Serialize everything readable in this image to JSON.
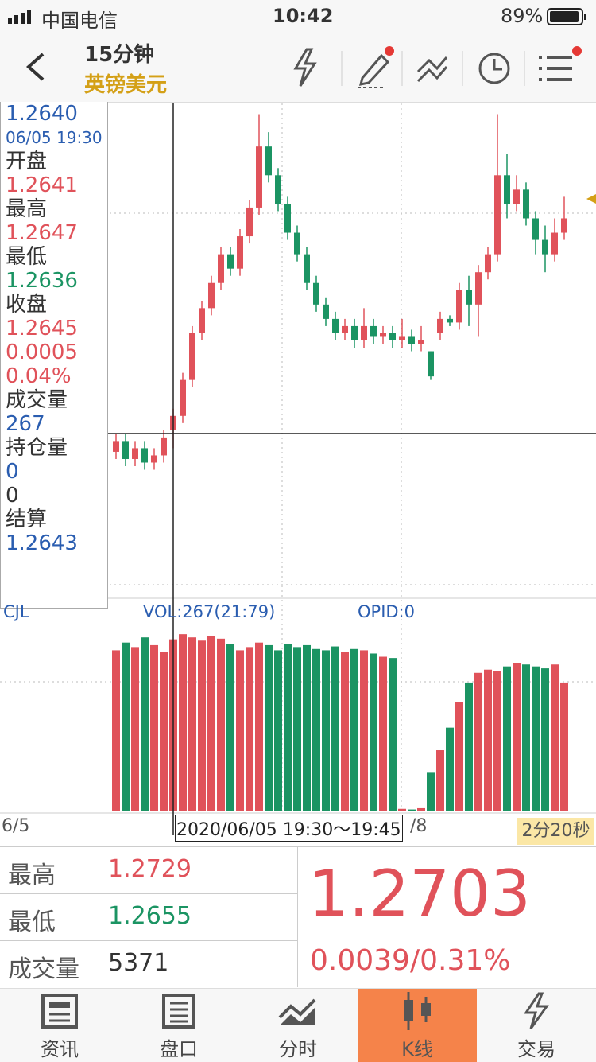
{
  "status_bar": {
    "carrier": "中国电信",
    "time": "10:42",
    "battery": "89%"
  },
  "header": {
    "period": "15分钟",
    "symbol": "英镑美元"
  },
  "chart_data": [
    {
      "type": "candlestick",
      "up_color": "#e0525a",
      "down_color": "#1b9463",
      "ylim": [
        1.2598,
        1.2732
      ],
      "x_labels": [
        "6/5",
        "/8"
      ],
      "crosshair_label": "2020/06/05 19:30～19:45",
      "timer": "2分20秒",
      "candles": [
        [
          1.2635,
          1.264,
          1.2633,
          1.2638
        ],
        [
          1.2638,
          1.264,
          1.2631,
          1.2633
        ],
        [
          1.2633,
          1.2638,
          1.2631,
          1.2636
        ],
        [
          1.2636,
          1.2638,
          1.263,
          1.2632
        ],
        [
          1.2632,
          1.2636,
          1.263,
          1.2634
        ],
        [
          1.2634,
          1.2641,
          1.2632,
          1.2639
        ],
        [
          1.2641,
          1.2647,
          1.2636,
          1.2645
        ],
        [
          1.2645,
          1.2657,
          1.2643,
          1.2655
        ],
        [
          1.2655,
          1.267,
          1.2653,
          1.2668
        ],
        [
          1.2668,
          1.2677,
          1.2666,
          1.2675
        ],
        [
          1.2675,
          1.2684,
          1.2673,
          1.2682
        ],
        [
          1.2682,
          1.2692,
          1.268,
          1.269
        ],
        [
          1.269,
          1.2692,
          1.2684,
          1.2686
        ],
        [
          1.2686,
          1.2697,
          1.2684,
          1.2695
        ],
        [
          1.2695,
          1.2705,
          1.2693,
          1.2703
        ],
        [
          1.2703,
          1.2729,
          1.2701,
          1.272
        ],
        [
          1.272,
          1.2724,
          1.271,
          1.2712
        ],
        [
          1.2712,
          1.2714,
          1.2702,
          1.2704
        ],
        [
          1.2704,
          1.2706,
          1.2694,
          1.2696
        ],
        [
          1.2696,
          1.2698,
          1.2688,
          1.269
        ],
        [
          1.269,
          1.2692,
          1.268,
          1.2682
        ],
        [
          1.2682,
          1.2684,
          1.2674,
          1.2676
        ],
        [
          1.2676,
          1.2678,
          1.267,
          1.2672
        ],
        [
          1.2672,
          1.2674,
          1.2666,
          1.2668
        ],
        [
          1.2668,
          1.2672,
          1.2666,
          1.267
        ],
        [
          1.267,
          1.2672,
          1.2664,
          1.2666
        ],
        [
          1.2666,
          1.2675,
          1.2664,
          1.267
        ],
        [
          1.267,
          1.2672,
          1.2665,
          1.2667
        ],
        [
          1.2667,
          1.267,
          1.2665,
          1.2668
        ],
        [
          1.2668,
          1.267,
          1.2664,
          1.2666
        ],
        [
          1.2666,
          1.2672,
          1.2664,
          1.2667
        ],
        [
          1.2667,
          1.2669,
          1.2663,
          1.2665
        ],
        [
          1.2665,
          1.267,
          1.2663,
          1.2666
        ],
        [
          1.2663,
          1.2663,
          1.2655,
          1.2656
        ],
        [
          1.2668,
          1.2674,
          1.2666,
          1.2672
        ],
        [
          1.2672,
          1.2673,
          1.267,
          1.2671
        ],
        [
          1.2671,
          1.2682,
          1.2669,
          1.268
        ],
        [
          1.268,
          1.2684,
          1.267,
          1.2676
        ],
        [
          1.2676,
          1.2687,
          1.2667,
          1.2685
        ],
        [
          1.2685,
          1.2692,
          1.2683,
          1.269
        ],
        [
          1.269,
          1.2729,
          1.2688,
          1.2712
        ],
        [
          1.2712,
          1.2718,
          1.27,
          1.2704
        ],
        [
          1.2704,
          1.2712,
          1.2702,
          1.2708
        ],
        [
          1.2708,
          1.271,
          1.2698,
          1.27
        ],
        [
          1.27,
          1.2702,
          1.269,
          1.2694
        ],
        [
          1.2694,
          1.2698,
          1.2685,
          1.269
        ],
        [
          1.269,
          1.27,
          1.2688,
          1.2696
        ],
        [
          1.2696,
          1.2706,
          1.2694,
          1.27
        ]
      ]
    },
    {
      "type": "bar",
      "label": "CJL",
      "indicator": "VOL:267(21:79)",
      "opid": "OPID:0",
      "ylim": [
        0,
        290
      ],
      "values": [
        250,
        262,
        255,
        270,
        258,
        248,
        267,
        275,
        270,
        265,
        272,
        268,
        260,
        250,
        255,
        262,
        258,
        250,
        260,
        255,
        258,
        252,
        250,
        256,
        248,
        252,
        250,
        245,
        240,
        238,
        4,
        3,
        5,
        60,
        95,
        130,
        170,
        200,
        215,
        220,
        218,
        225,
        230,
        228,
        225,
        222,
        228,
        200
      ]
    }
  ],
  "info_panel": {
    "price": "1.2640",
    "time": "06/05 19:30",
    "items": [
      "开盘",
      "1.2641",
      "最高",
      "1.2647",
      "最低",
      "1.2636",
      "收盘",
      "1.2645",
      "0.0005",
      "0.04%",
      "成交量",
      "267",
      "持仓量",
      "0",
      "0",
      "结算",
      "1.2643"
    ]
  },
  "quote": {
    "rows": [
      [
        "最高",
        "1.2729"
      ],
      [
        "最低",
        "1.2655"
      ],
      [
        "成交量",
        "5371"
      ]
    ],
    "last": "1.2703",
    "change": "0.0039/0.31%"
  },
  "tabs": [
    "资讯",
    "盘口",
    "分时",
    "K线",
    "交易"
  ]
}
